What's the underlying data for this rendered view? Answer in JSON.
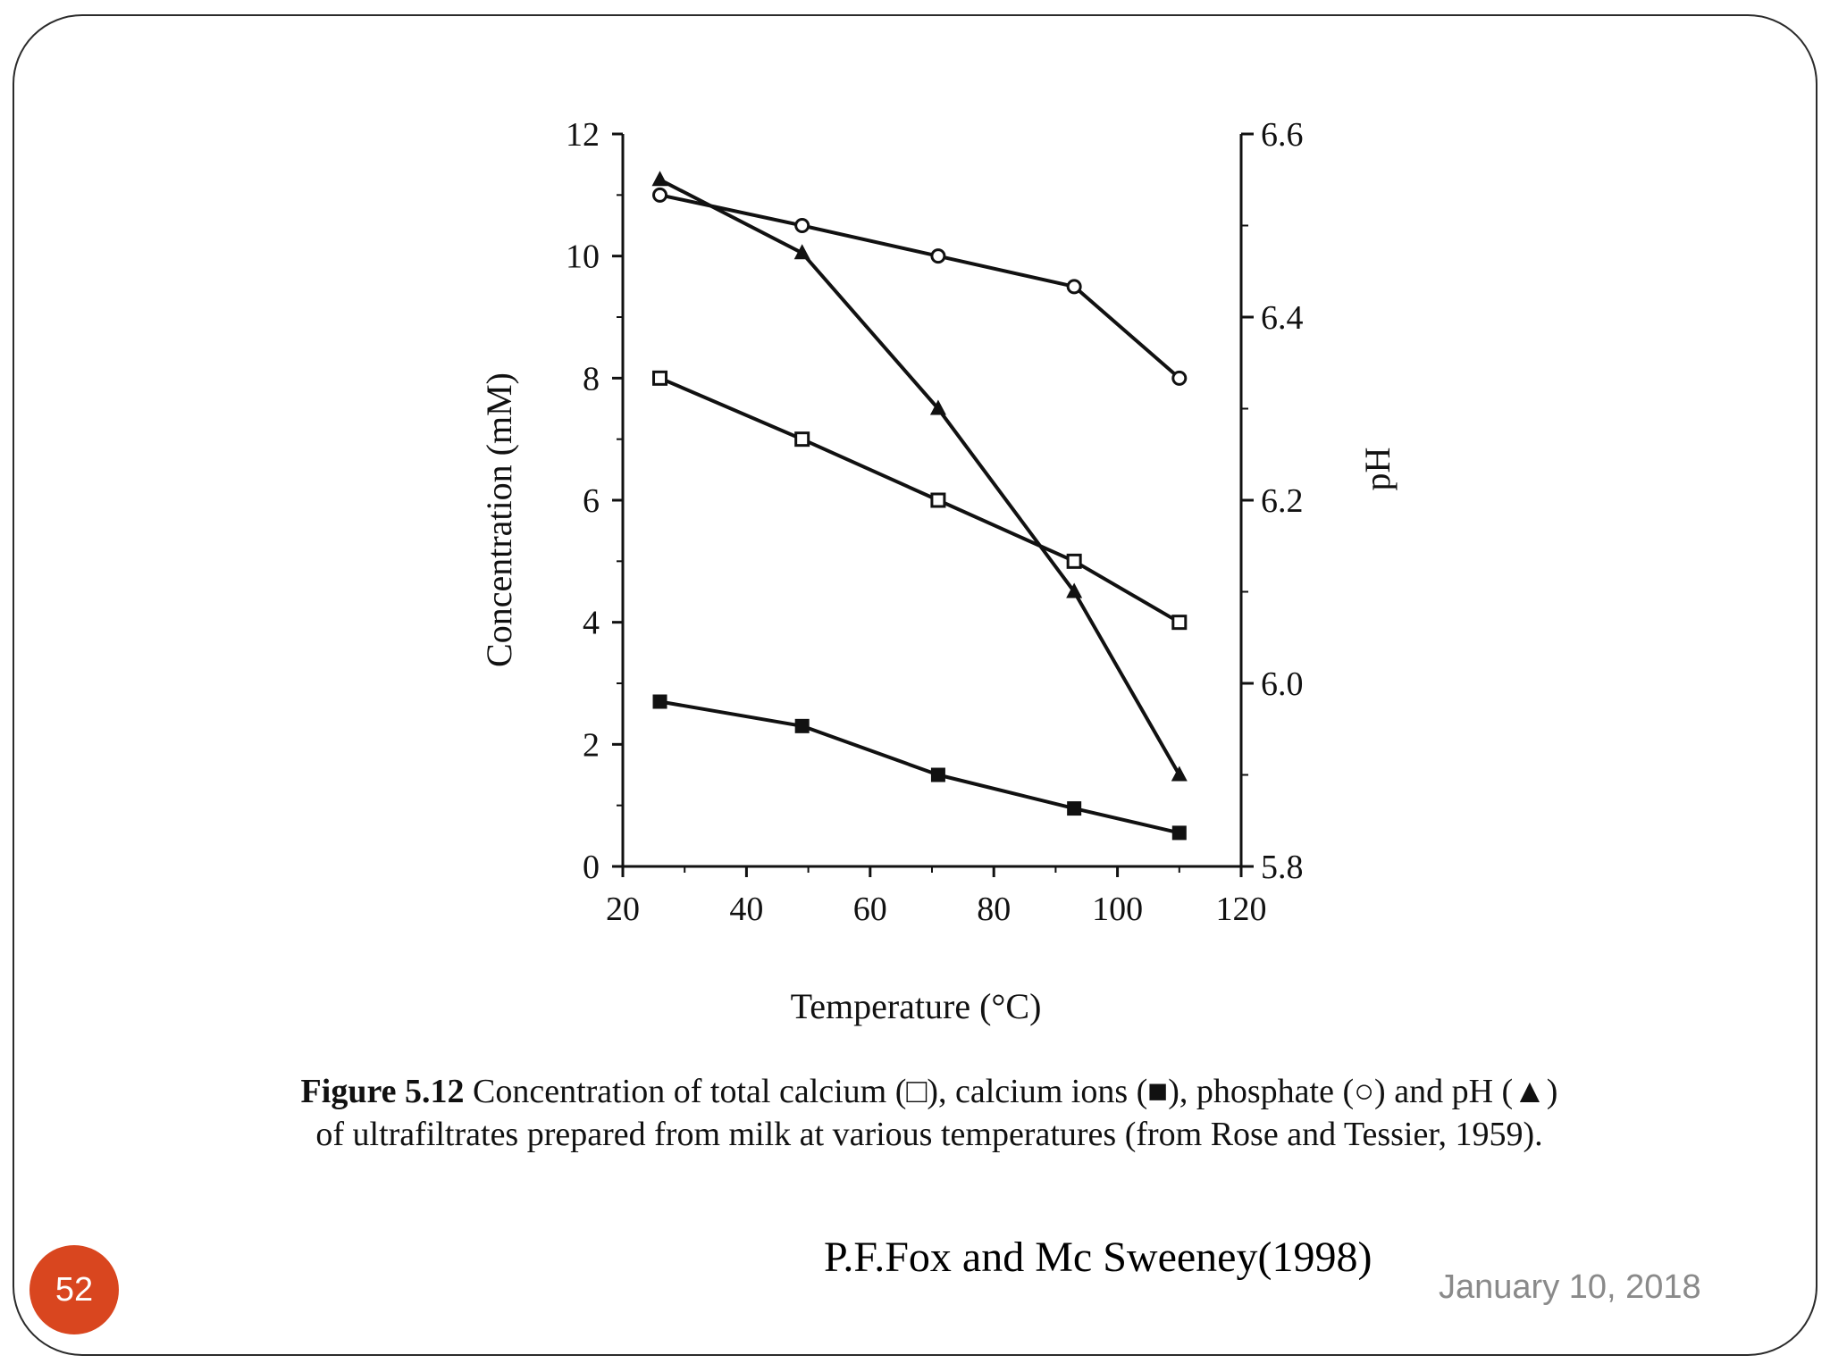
{
  "slide": {
    "page_number": "52",
    "date": "January 10, 2018",
    "credit": "P.F.Fox and Mc Sweeney(1998)"
  },
  "caption": {
    "figure_label": "Figure 5.12",
    "line1_text": "Concentration of total calcium (□), calcium ions (■), phosphate (○) and pH (▲)",
    "line2_text": "of ultrafiltrates prepared from milk at various temperatures (from Rose and Tessier, 1959)."
  },
  "chart_data": {
    "type": "line",
    "title": "",
    "xlabel": "Temperature (°C)",
    "ylabel": "Concentration (mM)",
    "y2label": "pH",
    "xlim": [
      20,
      120
    ],
    "ylim": [
      0,
      12
    ],
    "y2lim": [
      5.8,
      6.6
    ],
    "x_ticks": [
      20,
      40,
      60,
      80,
      100,
      120
    ],
    "x_tick_labels": [
      "20",
      "40",
      "60",
      "80",
      "100",
      "120"
    ],
    "y_ticks": [
      0,
      2,
      4,
      6,
      8,
      10,
      12
    ],
    "y_tick_labels": [
      "0",
      "2",
      "4",
      "6",
      "8",
      "10",
      "12"
    ],
    "y2_ticks": [
      5.8,
      6.0,
      6.2,
      6.4,
      6.6
    ],
    "y2_tick_labels": [
      "5.8",
      "6.0",
      "6.2",
      "6.4",
      "6.6"
    ],
    "grid": false,
    "series": [
      {
        "name": "total calcium",
        "marker": "open-square",
        "axis": "left",
        "x": [
          26,
          49,
          71,
          93,
          110
        ],
        "values": [
          8.0,
          7.0,
          6.0,
          5.0,
          4.0
        ]
      },
      {
        "name": "calcium ions",
        "marker": "filled-square",
        "axis": "left",
        "x": [
          26,
          49,
          71,
          93,
          110
        ],
        "values": [
          2.7,
          2.3,
          1.5,
          0.95,
          0.55
        ]
      },
      {
        "name": "phosphate",
        "marker": "open-circle",
        "axis": "left",
        "x": [
          26,
          49,
          71,
          93,
          110
        ],
        "values": [
          11.0,
          10.5,
          10.0,
          9.5,
          8.0
        ]
      },
      {
        "name": "pH",
        "marker": "filled-triangle",
        "axis": "right",
        "x": [
          26,
          49,
          71,
          93,
          110
        ],
        "values": [
          6.55,
          6.47,
          6.3,
          6.1,
          5.9
        ]
      }
    ]
  }
}
